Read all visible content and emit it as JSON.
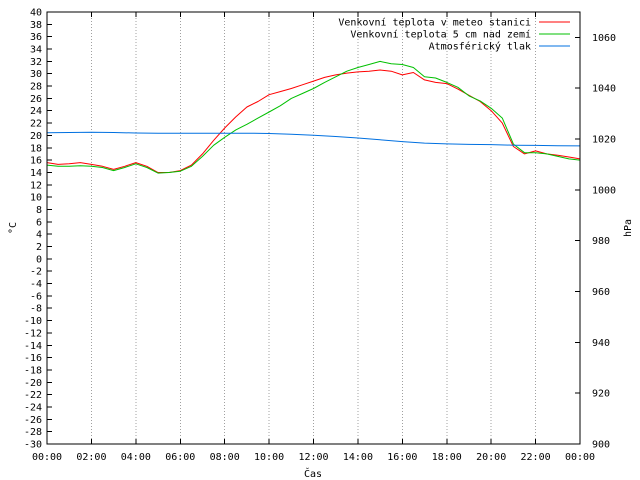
{
  "chart_data": {
    "type": "line",
    "xlabel": "Čas",
    "ylabel": "°C",
    "y2label": "hPa",
    "grid": true,
    "legend_position": "top-right",
    "xlim": [
      0,
      24
    ],
    "ylim": [
      -30,
      40
    ],
    "y2lim": [
      900,
      1070
    ],
    "x_ticks": [
      "00:00",
      "02:00",
      "04:00",
      "06:00",
      "08:00",
      "10:00",
      "12:00",
      "14:00",
      "16:00",
      "18:00",
      "20:00",
      "22:00",
      "00:00"
    ],
    "y_ticks": [
      "-30",
      "-28",
      "-26",
      "-24",
      "-22",
      "-20",
      "-18",
      "-16",
      "-14",
      "-12",
      "-10",
      "-8",
      "-6",
      "-4",
      "-2",
      "0",
      "2",
      "4",
      "6",
      "8",
      "10",
      "12",
      "14",
      "16",
      "18",
      "20",
      "22",
      "24",
      "26",
      "28",
      "30",
      "32",
      "34",
      "36",
      "38",
      "40"
    ],
    "y2_ticks": [
      "900",
      "920",
      "940",
      "960",
      "980",
      "1000",
      "1020",
      "1040",
      "1060"
    ],
    "series": [
      {
        "name": "Venkovní teplota v meteo stanici",
        "color": "#ff0000",
        "axis": "y",
        "x": [
          0,
          0.5,
          1,
          1.5,
          2,
          2.5,
          3,
          3.5,
          4,
          4.5,
          5,
          5.5,
          6,
          6.5,
          7,
          7.5,
          8,
          8.5,
          9,
          9.5,
          10,
          10.5,
          11,
          11.5,
          12,
          12.5,
          13,
          13.5,
          14,
          14.5,
          15,
          15.5,
          16,
          16.5,
          17,
          17.5,
          18,
          18.5,
          19,
          19.5,
          20,
          20.5,
          21,
          21.5,
          22,
          22.5,
          23,
          23.5,
          24
        ],
        "values": [
          15.6,
          15.3,
          15.4,
          15.6,
          15.3,
          15.0,
          14.5,
          15.0,
          15.6,
          15.0,
          14.0,
          14.0,
          14.3,
          15.2,
          17.0,
          19.2,
          21.2,
          23.0,
          24.6,
          25.5,
          26.6,
          27.1,
          27.6,
          28.2,
          28.8,
          29.4,
          29.8,
          30.1,
          30.3,
          30.4,
          30.6,
          30.4,
          29.8,
          30.2,
          29.0,
          28.6,
          28.4,
          27.5,
          26.5,
          25.5,
          24.0,
          22.0,
          18.2,
          17.0,
          17.5,
          17.0,
          16.8,
          16.5,
          16.2
        ]
      },
      {
        "name": "Venkovní teplota 5 cm nad zemí",
        "color": "#00c000",
        "axis": "y",
        "x": [
          0,
          0.5,
          1,
          1.5,
          2,
          2.5,
          3,
          3.5,
          4,
          4.5,
          5,
          5.5,
          6,
          6.5,
          7,
          7.5,
          8,
          8.5,
          9,
          9.5,
          10,
          10.5,
          11,
          11.5,
          12,
          12.5,
          13,
          13.5,
          14,
          14.5,
          15,
          15.5,
          16,
          16.5,
          17,
          17.5,
          18,
          18.5,
          19,
          19.5,
          20,
          20.5,
          21,
          21.5,
          22,
          22.5,
          23,
          23.5,
          24
        ],
        "values": [
          15.2,
          15.0,
          15.0,
          15.1,
          15.0,
          14.8,
          14.3,
          14.8,
          15.4,
          14.8,
          13.9,
          14.0,
          14.2,
          15.0,
          16.6,
          18.4,
          19.7,
          20.9,
          21.8,
          22.8,
          23.8,
          24.8,
          26.0,
          26.8,
          27.6,
          28.6,
          29.5,
          30.4,
          31.0,
          31.5,
          32.0,
          31.6,
          31.5,
          31.0,
          29.5,
          29.3,
          28.6,
          27.8,
          26.4,
          25.6,
          24.4,
          22.8,
          18.6,
          17.2,
          17.2,
          17.0,
          16.6,
          16.2,
          16.0
        ]
      },
      {
        "name": "Atmosférický tlak",
        "color": "#0070e0",
        "axis": "y2",
        "x": [
          0,
          1,
          2,
          3,
          4,
          5,
          6,
          7,
          8,
          9,
          10,
          11,
          12,
          13,
          14,
          15,
          16,
          17,
          18,
          19,
          20,
          21,
          22,
          23,
          24
        ],
        "values": [
          1022.5,
          1022.6,
          1022.7,
          1022.6,
          1022.4,
          1022.3,
          1022.3,
          1022.3,
          1022.3,
          1022.3,
          1022.2,
          1021.9,
          1021.5,
          1021.0,
          1020.4,
          1019.7,
          1019.0,
          1018.4,
          1018.1,
          1017.9,
          1017.8,
          1017.6,
          1017.5,
          1017.4,
          1017.3
        ]
      }
    ]
  }
}
